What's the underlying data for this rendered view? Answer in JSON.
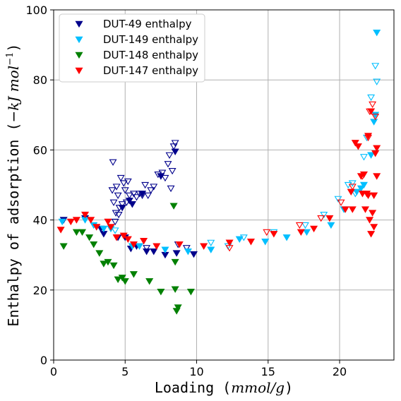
{
  "chart_data": {
    "type": "scatter",
    "xlabel": "Loading (mmol/g)",
    "ylabel": "Enthalpy of adsorption (−kJ mol⁻¹)",
    "xlim": [
      0,
      23.8
    ],
    "ylim": [
      0,
      100
    ],
    "x_ticks": [
      0,
      5,
      10,
      15,
      20
    ],
    "y_ticks": [
      0,
      20,
      40,
      60,
      80,
      100
    ],
    "grid": true,
    "legend_position": "top-left",
    "series": [
      {
        "name": "DUT-49 enthalpy",
        "color": "#00008b",
        "filled": [
          [
            0.7,
            40
          ],
          [
            2.2,
            40.5
          ],
          [
            3.3,
            37.5
          ],
          [
            3.5,
            36
          ],
          [
            4.5,
            35
          ],
          [
            5.0,
            35
          ],
          [
            5.4,
            31.8
          ],
          [
            5.8,
            32.5
          ],
          [
            6.5,
            31
          ],
          [
            7.0,
            31
          ],
          [
            7.8,
            30
          ],
          [
            8.5,
            59.5
          ],
          [
            8.6,
            30.5
          ],
          [
            9.8,
            30.2
          ],
          [
            4.8,
            43.5
          ],
          [
            5.3,
            45.5
          ],
          [
            5.5,
            44.5
          ],
          [
            6.2,
            47.5
          ],
          [
            7.5,
            52.5
          ]
        ],
        "open": [
          [
            4.1,
            48.5
          ],
          [
            4.15,
            56.5
          ],
          [
            4.2,
            45
          ],
          [
            4.3,
            39.5
          ],
          [
            4.35,
            42
          ],
          [
            4.4,
            49.5
          ],
          [
            4.5,
            47
          ],
          [
            4.55,
            41.5
          ],
          [
            4.6,
            43.5
          ],
          [
            4.7,
            52
          ],
          [
            4.8,
            44.5
          ],
          [
            4.9,
            50.5
          ],
          [
            5.0,
            48.5
          ],
          [
            5.1,
            45
          ],
          [
            5.2,
            51
          ],
          [
            5.3,
            47
          ],
          [
            5.5,
            44.5
          ],
          [
            5.6,
            47.5
          ],
          [
            5.8,
            46.5
          ],
          [
            6.0,
            47.5
          ],
          [
            6.2,
            47
          ],
          [
            6.4,
            50
          ],
          [
            6.6,
            47
          ],
          [
            6.8,
            48.5
          ],
          [
            7.0,
            49.5
          ],
          [
            7.3,
            53
          ],
          [
            7.6,
            53.5
          ],
          [
            7.8,
            52
          ],
          [
            8.0,
            56
          ],
          [
            8.1,
            58.5
          ],
          [
            8.2,
            49
          ],
          [
            8.3,
            54
          ],
          [
            8.4,
            61
          ],
          [
            8.5,
            62
          ],
          [
            6.5,
            32
          ],
          [
            9.3,
            32
          ],
          [
            8.7,
            33
          ]
        ]
      },
      {
        "name": "DUT-149 enthalpy",
        "color": "#00bfff",
        "filled": [
          [
            0.6,
            39.5
          ],
          [
            2.2,
            40
          ],
          [
            2.8,
            38.5
          ],
          [
            3.5,
            37.5
          ],
          [
            4.0,
            37.5
          ],
          [
            5.5,
            32.5
          ],
          [
            6.0,
            32.5
          ],
          [
            7.8,
            31.5
          ],
          [
            9.4,
            31
          ],
          [
            11,
            31.5
          ],
          [
            13,
            34.5
          ],
          [
            14.8,
            33.8
          ],
          [
            16.3,
            35
          ],
          [
            17.7,
            36.5
          ],
          [
            19.4,
            38.5
          ],
          [
            20.3,
            43
          ],
          [
            21.2,
            48
          ],
          [
            21.5,
            49
          ],
          [
            21.7,
            50
          ],
          [
            22.2,
            58.5
          ],
          [
            22.4,
            68
          ],
          [
            22.5,
            70
          ],
          [
            22.6,
            93.5
          ]
        ],
        "open": [
          [
            3.0,
            38
          ],
          [
            4.3,
            37
          ],
          [
            11.0,
            33.5
          ],
          [
            12.2,
            32.5
          ],
          [
            13.3,
            35
          ],
          [
            15.4,
            36.5
          ],
          [
            17.6,
            38.5
          ],
          [
            18.9,
            41.5
          ],
          [
            19.9,
            46
          ],
          [
            20.6,
            50
          ],
          [
            20.9,
            50.5
          ],
          [
            21.1,
            47.5
          ],
          [
            21.7,
            58
          ],
          [
            21.9,
            63.5
          ],
          [
            22.2,
            75
          ],
          [
            22.5,
            84
          ],
          [
            22.6,
            79.5
          ]
        ]
      },
      {
        "name": "DUT-148 enthalpy",
        "color": "#008000",
        "filled": [
          [
            0.7,
            32.5
          ],
          [
            1.6,
            36.5
          ],
          [
            2.0,
            36.5
          ],
          [
            2.5,
            35
          ],
          [
            2.8,
            33
          ],
          [
            3.2,
            30.5
          ],
          [
            3.5,
            27.5
          ],
          [
            3.8,
            28
          ],
          [
            4.2,
            27
          ],
          [
            4.5,
            23
          ],
          [
            4.8,
            23.5
          ],
          [
            5.0,
            22.5
          ],
          [
            5.6,
            24.5
          ],
          [
            6.7,
            22.5
          ],
          [
            7.5,
            19.5
          ],
          [
            8.5,
            20.2
          ],
          [
            8.6,
            14
          ],
          [
            8.7,
            15
          ],
          [
            9.6,
            19.5
          ],
          [
            8.4,
            44
          ],
          [
            8.5,
            28
          ]
        ],
        "open": []
      },
      {
        "name": "DUT-147 enthalpy",
        "color": "#ff0000",
        "filled": [
          [
            0.5,
            37.2
          ],
          [
            1.2,
            39.5
          ],
          [
            1.6,
            40
          ],
          [
            2.2,
            41.5
          ],
          [
            2.6,
            40
          ],
          [
            3.0,
            38
          ],
          [
            3.8,
            39.5
          ],
          [
            4.0,
            38
          ],
          [
            4.4,
            35
          ],
          [
            4.9,
            35.5
          ],
          [
            5.2,
            34.5
          ],
          [
            5.6,
            33
          ],
          [
            6.3,
            34
          ],
          [
            7.2,
            32.5
          ],
          [
            8.8,
            33
          ],
          [
            10.5,
            32.5
          ],
          [
            12.3,
            33.5
          ],
          [
            13.8,
            33.8
          ],
          [
            15.4,
            36
          ],
          [
            17.3,
            36.5
          ],
          [
            18.2,
            37.5
          ],
          [
            19.3,
            40.5
          ],
          [
            20.4,
            43
          ],
          [
            20.8,
            48
          ],
          [
            20.9,
            43
          ],
          [
            21.1,
            62
          ],
          [
            21.3,
            61
          ],
          [
            21.5,
            52.5
          ],
          [
            21.6,
            47.5
          ],
          [
            21.7,
            53
          ],
          [
            21.8,
            43
          ],
          [
            22.0,
            47
          ],
          [
            22.1,
            40
          ],
          [
            22.2,
            36
          ],
          [
            22.3,
            42
          ],
          [
            22.4,
            38
          ],
          [
            22.4,
            47
          ],
          [
            22.5,
            59
          ],
          [
            22.6,
            60.5
          ],
          [
            22.6,
            52.5
          ],
          [
            21.9,
            47.5
          ],
          [
            22.0,
            64
          ],
          [
            22.2,
            71
          ]
        ],
        "open": [
          [
            12.3,
            32
          ],
          [
            14.9,
            36.5
          ],
          [
            17.2,
            38.5
          ],
          [
            18.7,
            40.5
          ],
          [
            20.1,
            45
          ],
          [
            20.9,
            49.5
          ],
          [
            21.6,
            52.5
          ],
          [
            22.0,
            63.5
          ],
          [
            22.1,
            71
          ],
          [
            22.3,
            73
          ],
          [
            22.5,
            69.5
          ]
        ]
      }
    ]
  }
}
